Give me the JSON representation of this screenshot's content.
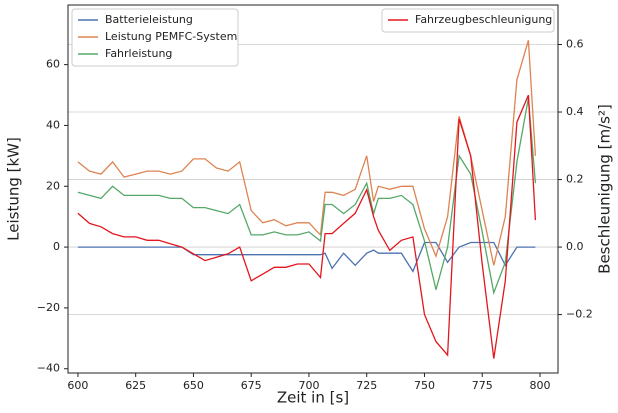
{
  "chart_data": {
    "type": "line",
    "xlabel": "Zeit in [s]",
    "ylabel": "Leistung [kW]",
    "y2label": "Beschleunigung [m/s²]",
    "x": [
      600,
      605,
      610,
      615,
      620,
      625,
      630,
      635,
      640,
      645,
      650,
      655,
      660,
      665,
      670,
      675,
      680,
      685,
      690,
      695,
      700,
      705,
      707,
      710,
      715,
      720,
      725,
      728,
      730,
      735,
      740,
      745,
      750,
      755,
      760,
      765,
      770,
      775,
      780,
      785,
      790,
      795,
      798
    ],
    "xlim": [
      595.7,
      807.8
    ],
    "xticks": [
      600,
      625,
      650,
      675,
      700,
      725,
      750,
      775,
      800
    ],
    "ylim": [
      -41.4,
      79.6
    ],
    "yticks": [
      {
        "value": -40,
        "label": "−40"
      },
      {
        "value": -20,
        "label": "−20"
      },
      0,
      20,
      40,
      60
    ],
    "y2lim": [
      -0.373,
      0.717
    ],
    "y2ticks": [
      {
        "value": -0.2,
        "label": "−0.2"
      },
      {
        "value": 0,
        "label": "0.0"
      },
      0.2,
      0.4,
      0.6
    ],
    "y2_color": "#e3161e",
    "grid": "y2",
    "legend_y": "upper left",
    "legend_y2": "upper right",
    "series": [
      {
        "name": "Batterieleistung",
        "color": "#4c72b0",
        "values": [
          0,
          0,
          0,
          0,
          0,
          0,
          0,
          0,
          0,
          0,
          -2.5,
          -2.5,
          -2.5,
          -2.5,
          -2.5,
          -2.5,
          -2.5,
          -2.5,
          -2.5,
          -2.5,
          -2.5,
          -2.5,
          -2,
          -7,
          -2,
          -6,
          -2,
          -1,
          -2,
          -2,
          -2,
          -8,
          1.5,
          1.5,
          -5,
          0,
          1.5,
          1.5,
          1.5,
          -6,
          0,
          0,
          0
        ]
      },
      {
        "name": "Leistung PEMFC-System",
        "color": "#dd8452",
        "values": [
          28,
          25,
          24,
          28,
          23,
          24,
          25,
          25,
          24,
          25,
          29,
          29,
          26,
          25,
          28,
          12,
          8,
          9,
          7,
          8,
          8,
          4,
          18,
          18,
          17,
          19,
          30,
          15,
          20,
          19,
          20,
          20,
          6,
          -3,
          10,
          43,
          30,
          12,
          -6,
          10,
          55,
          68,
          30
        ]
      },
      {
        "name": "Fahrleistung",
        "color": "#55a868",
        "values": [
          18,
          17,
          16,
          20,
          17,
          17,
          17,
          17,
          16,
          16,
          13,
          13,
          12,
          11,
          14,
          4,
          4,
          5,
          4,
          4,
          5,
          2,
          14,
          14,
          11,
          14,
          21,
          11,
          16,
          16,
          17,
          14,
          2,
          -14,
          0,
          30,
          24,
          5,
          -15,
          -5,
          28,
          49,
          21
        ]
      },
      {
        "name": "Fahrzeugbeschleunigung",
        "color": "#e3161e",
        "axis": "y2",
        "values": [
          0.1,
          0.07,
          0.06,
          0.04,
          0.03,
          0.03,
          0.02,
          0.02,
          0.01,
          0,
          -0.02,
          -0.04,
          -0.03,
          -0.02,
          0,
          -0.1,
          -0.08,
          -0.06,
          -0.06,
          -0.05,
          -0.05,
          -0.09,
          0.04,
          0.04,
          0.07,
          0.1,
          0.17,
          0.09,
          0.05,
          -0.01,
          0.02,
          0.03,
          -0.2,
          -0.28,
          -0.32,
          0.38,
          0.27,
          -0.05,
          -0.33,
          -0.1,
          0.37,
          0.45,
          0.08
        ]
      }
    ]
  }
}
